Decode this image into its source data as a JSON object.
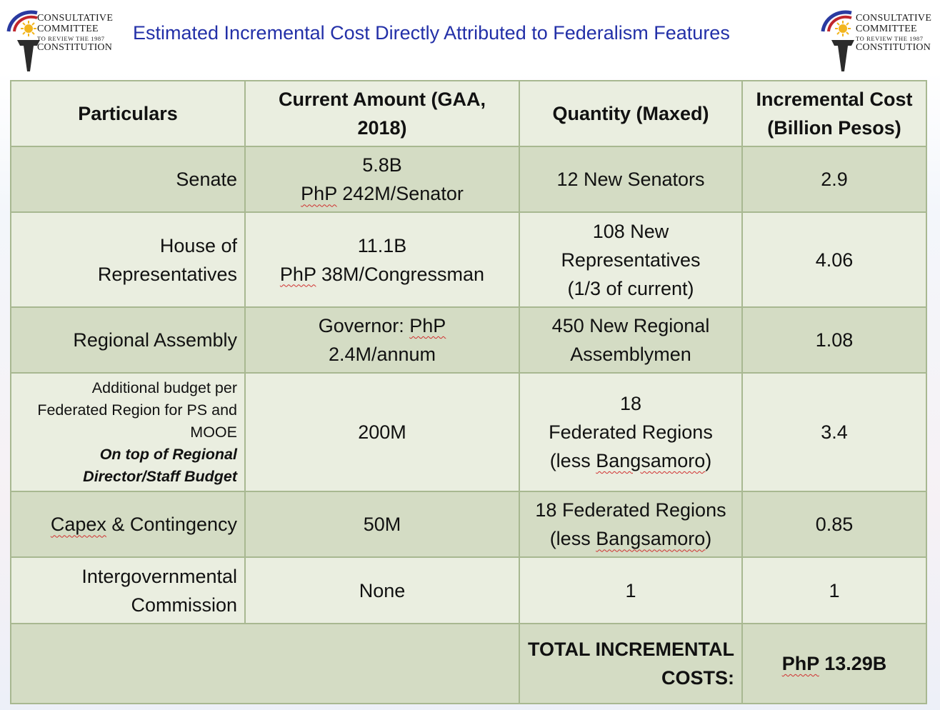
{
  "header": {
    "title": "Estimated Incremental Cost Directly Attributed to Federalism Features",
    "logo": {
      "line1": "Consultative",
      "line2": "Committee",
      "line3": "to review the 1987",
      "line4": "Constitution"
    },
    "colors": {
      "title": "#2330a8",
      "logo_blue": "#2a3aa0",
      "logo_red": "#c0262c",
      "logo_sun": "#f2b51e"
    }
  },
  "table": {
    "headers": {
      "particulars": "Particulars",
      "current_amount": "Current Amount (GAA, 2018)",
      "quantity": "Quantity (Maxed)",
      "incremental_cost": "Incremental Cost (Billion Pesos)"
    },
    "rows": [
      {
        "particular": "Senate",
        "amount_line1": "5.8B",
        "amount_pfx": "PhP",
        "amount_rest": " 242M/Senator",
        "quantity": "12 New Senators",
        "cost": "2.9"
      },
      {
        "particular_line1": "House of",
        "particular_line2": "Representatives",
        "amount_line1": "11.1B",
        "amount_pfx": "PhP",
        "amount_rest": " 38M/Congressman",
        "quantity_line1": "108 New",
        "quantity_line2": "Representatives",
        "quantity_line3": "(1/3 of current)",
        "cost": "4.06"
      },
      {
        "particular": "Regional Assembly",
        "amount_pre": "Governor: ",
        "amount_pfx": "PhP",
        "amount_line2": "2.4M/annum",
        "quantity_line1": "450 New Regional",
        "quantity_line2": "Assemblymen",
        "cost": "1.08"
      },
      {
        "particular_line1": "Additional budget per",
        "particular_line2": "Federated Region for PS and",
        "particular_line3": "MOOE",
        "particular_line4": "On top of Regional",
        "particular_line5": "Director/Staff Budget",
        "amount": "200M",
        "quantity_line1": "18",
        "quantity_line2": "Federated Regions",
        "quantity_pre": "(less ",
        "quantity_squig": "Bangsamoro",
        "quantity_post": ")",
        "cost": "3.4"
      },
      {
        "particular_squig": "Capex",
        "particular_rest": " & Contingency",
        "amount": "50M",
        "quantity_line1": "18 Federated Regions",
        "quantity_pre": "(less ",
        "quantity_squig": "Bangsamoro",
        "quantity_post": ")",
        "cost": "0.85"
      },
      {
        "particular_line1": "Intergovernmental",
        "particular_line2": "Commission",
        "amount": "None",
        "quantity": "1",
        "cost": "1"
      }
    ],
    "total": {
      "label_line1": "TOTAL INCREMENTAL",
      "label_line2": "COSTS:",
      "value_pfx": "PhP",
      "value_rest": " 13.29B"
    },
    "colors": {
      "border": "#a8b891",
      "band_light": "#eaeee0",
      "band_dark": "#d4dcc4"
    }
  }
}
